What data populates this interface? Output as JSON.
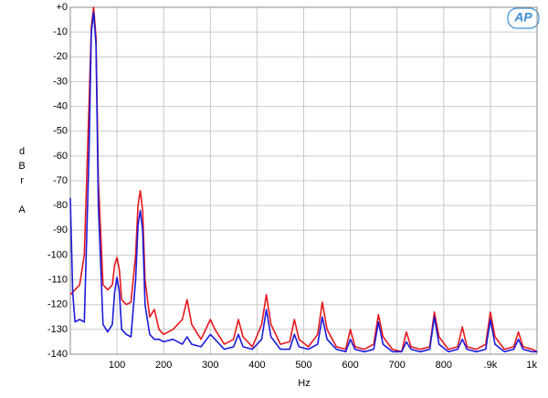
{
  "chart_data": {
    "type": "line",
    "xlabel": "Hz",
    "ylabel": "dBr A",
    "logo": "AP",
    "xlim": [
      0,
      1000
    ],
    "ylim": [
      -140,
      0
    ],
    "xticks": [
      100,
      200,
      300,
      400,
      500,
      600,
      700,
      800,
      {
        "value": 900,
        "label": ".9k"
      },
      {
        "value": 1000,
        "label": "1k"
      }
    ],
    "yticks": [
      {
        "value": 0,
        "label": "+0"
      },
      -10,
      -20,
      -30,
      -40,
      -50,
      -60,
      -70,
      -80,
      -90,
      -100,
      -110,
      -120,
      -130,
      -140
    ],
    "grid": true,
    "x": [
      0,
      5,
      10,
      20,
      30,
      40,
      45,
      50,
      55,
      60,
      70,
      80,
      90,
      95,
      100,
      105,
      110,
      120,
      130,
      140,
      145,
      150,
      155,
      160,
      170,
      180,
      190,
      200,
      220,
      240,
      250,
      260,
      280,
      300,
      310,
      330,
      350,
      360,
      370,
      390,
      410,
      420,
      430,
      450,
      470,
      480,
      490,
      510,
      530,
      540,
      550,
      570,
      590,
      600,
      610,
      630,
      650,
      660,
      670,
      690,
      710,
      720,
      730,
      750,
      770,
      780,
      790,
      810,
      830,
      840,
      850,
      870,
      890,
      900,
      910,
      930,
      950,
      960,
      970,
      990,
      1000
    ],
    "series": [
      {
        "color": "#e8161c",
        "values": [
          -116,
          -115,
          -114,
          -112,
          -100,
          -40,
          -8,
          0,
          -12,
          -70,
          -112,
          -114,
          -112,
          -104,
          -101,
          -106,
          -118,
          -120,
          -119,
          -100,
          -80,
          -74,
          -82,
          -110,
          -125,
          -122,
          -130,
          -132,
          -130,
          -126,
          -118,
          -128,
          -134,
          -126,
          -130,
          -136,
          -134,
          -126,
          -133,
          -137,
          -128,
          -116,
          -128,
          -136,
          -135,
          -126,
          -134,
          -137,
          -132,
          -119,
          -130,
          -137,
          -138,
          -130,
          -137,
          -138,
          -136,
          -124,
          -133,
          -138,
          -139,
          -131,
          -137,
          -138,
          -137,
          -123,
          -133,
          -138,
          -137,
          -129,
          -137,
          -138,
          -136,
          -123,
          -133,
          -138,
          -137,
          -131,
          -137,
          -138,
          -139
        ]
      },
      {
        "color": "#1a1adc",
        "values": [
          -77,
          -115,
          -127,
          -126,
          -127,
          -60,
          -10,
          -2,
          -15,
          -80,
          -128,
          -131,
          -128,
          -115,
          -109,
          -115,
          -130,
          -132,
          -133,
          -110,
          -88,
          -82,
          -90,
          -120,
          -132,
          -134,
          -134,
          -135,
          -134,
          -136,
          -133,
          -136,
          -137,
          -132,
          -134,
          -138,
          -137,
          -132,
          -137,
          -138,
          -134,
          -122,
          -133,
          -138,
          -138,
          -132,
          -137,
          -138,
          -136,
          -125,
          -134,
          -138,
          -139,
          -134,
          -138,
          -139,
          -138,
          -127,
          -136,
          -139,
          -139,
          -135,
          -138,
          -139,
          -138,
          -125,
          -136,
          -139,
          -138,
          -134,
          -138,
          -139,
          -138,
          -126,
          -136,
          -139,
          -138,
          -134,
          -138,
          -139,
          -139
        ]
      }
    ]
  }
}
